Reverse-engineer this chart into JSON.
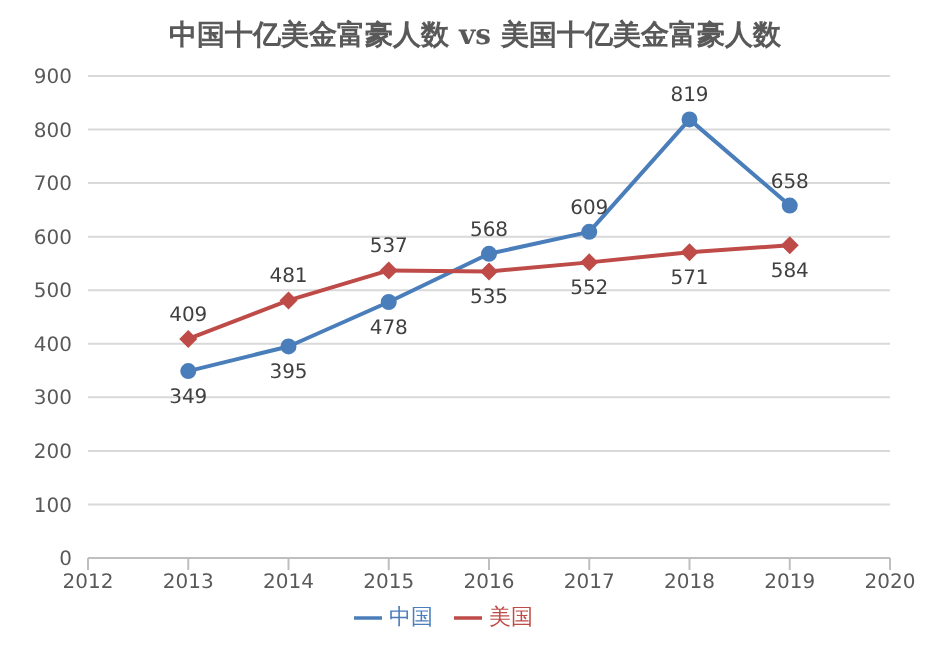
{
  "chart_data": {
    "type": "line",
    "title": "中国十亿美金富豪人数 vs 美国十亿美金富豪人数",
    "x": [
      2013,
      2014,
      2015,
      2016,
      2017,
      2018,
      2019
    ],
    "series": [
      {
        "name": "中国",
        "color": "#4a7ebb",
        "marker": "circle",
        "values": [
          349,
          395,
          478,
          568,
          609,
          819,
          658
        ]
      },
      {
        "name": "美国",
        "color": "#be4b48",
        "marker": "diamond",
        "values": [
          409,
          481,
          537,
          535,
          552,
          571,
          584
        ]
      }
    ],
    "xlim": [
      2012,
      2020
    ],
    "xticks": [
      2012,
      2013,
      2014,
      2015,
      2016,
      2017,
      2018,
      2019,
      2020
    ],
    "ylim": [
      0,
      900
    ],
    "yticks": [
      0,
      100,
      200,
      300,
      400,
      500,
      600,
      700,
      800,
      900
    ],
    "grid": "y",
    "legend": "bottom",
    "data_labels": true
  }
}
